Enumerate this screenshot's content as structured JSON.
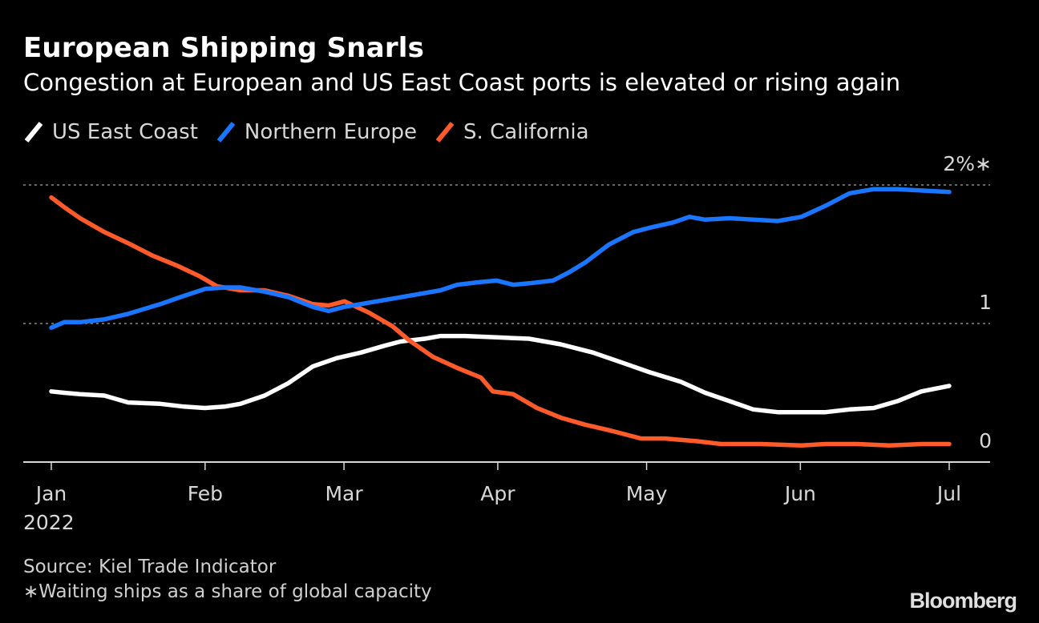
{
  "header": {
    "title": "European Shipping Snarls",
    "subtitle": "Congestion at European and US East Coast ports is elevated or rising again"
  },
  "legend": [
    {
      "label": "US East Coast",
      "color": "#ffffff"
    },
    {
      "label": "Northern Europe",
      "color": "#1a75ff"
    },
    {
      "label": "S. California",
      "color": "#ff5a2a"
    }
  ],
  "footer": {
    "source": "Source: Kiel Trade Indicator",
    "note": "∗Waiting ships as a share of global capacity",
    "brand": "Bloomberg"
  },
  "chart_data": {
    "type": "line",
    "title": "European Shipping Snarls",
    "subtitle": "Congestion at European and US East Coast ports is elevated or rising again",
    "xlabel": "",
    "ylabel": "Waiting ships as a share of global capacity (%)",
    "x_unit": "days since 2022-01-01",
    "xlim": [
      0,
      181
    ],
    "ylim": [
      0,
      2
    ],
    "y_ticks": [
      {
        "value": 0,
        "label": "0"
      },
      {
        "value": 1,
        "label": "1"
      },
      {
        "value": 2,
        "label": "2%∗"
      }
    ],
    "x_ticks": [
      {
        "value": 0,
        "label": "Jan",
        "sublabel": "2022"
      },
      {
        "value": 31,
        "label": "Feb"
      },
      {
        "value": 59,
        "label": "Mar"
      },
      {
        "value": 90,
        "label": "Apr"
      },
      {
        "value": 120,
        "label": "May"
      },
      {
        "value": 151,
        "label": "Jun"
      },
      {
        "value": 181,
        "label": "Jul"
      }
    ],
    "grid": "dotted horizontal at 1 and 2",
    "legend_position": "top-left",
    "series": [
      {
        "name": "US East Coast",
        "color": "#ffffff",
        "x": [
          0,
          2.6,
          5.8,
          10.7,
          15.5,
          21.97,
          26.8,
          31,
          34.9,
          38.1,
          42.98,
          47.8,
          52.7,
          57.5,
          62.4,
          67.2,
          70.4,
          75.3,
          78.5,
          83.4,
          89.8,
          96.3,
          102.7,
          109.2,
          115.7,
          120.5,
          126.9,
          131.8,
          136.7,
          141.5,
          146.4,
          151.2,
          156.1,
          160.9,
          165.8,
          170.6,
          175.4,
          181
        ],
        "values": [
          0.51,
          0.5,
          0.49,
          0.48,
          0.43,
          0.42,
          0.4,
          0.39,
          0.4,
          0.42,
          0.48,
          0.57,
          0.69,
          0.75,
          0.79,
          0.84,
          0.87,
          0.89,
          0.91,
          0.91,
          0.9,
          0.89,
          0.85,
          0.79,
          0.71,
          0.65,
          0.58,
          0.5,
          0.44,
          0.38,
          0.36,
          0.36,
          0.36,
          0.38,
          0.39,
          0.44,
          0.51,
          0.55
        ]
      },
      {
        "name": "Northern Europe",
        "color": "#1a75ff",
        "x": [
          0,
          2.6,
          5.8,
          10.7,
          15.5,
          21.97,
          26.8,
          31,
          34.9,
          38.1,
          42.98,
          47.8,
          52.7,
          55.9,
          59.1,
          63.98,
          68.8,
          73.7,
          78.5,
          81.8,
          86.6,
          89.8,
          93.1,
          96.3,
          101.1,
          104.4,
          107.6,
          112.4,
          117.3,
          120.5,
          125.4,
          128.6,
          131.8,
          136.7,
          141.5,
          146.4,
          151.2,
          156.1,
          160.9,
          165.8,
          170.6,
          175.4,
          181
        ],
        "values": [
          0.97,
          1.01,
          1.01,
          1.03,
          1.07,
          1.14,
          1.2,
          1.25,
          1.26,
          1.26,
          1.23,
          1.19,
          1.12,
          1.09,
          1.12,
          1.15,
          1.18,
          1.21,
          1.24,
          1.28,
          1.3,
          1.31,
          1.28,
          1.29,
          1.31,
          1.37,
          1.44,
          1.57,
          1.66,
          1.69,
          1.73,
          1.77,
          1.75,
          1.76,
          1.75,
          1.74,
          1.77,
          1.85,
          1.94,
          1.97,
          1.97,
          1.96,
          1.95
        ]
      },
      {
        "name": "S. California",
        "color": "#ff5a2a",
        "x": [
          0,
          2.6,
          5.8,
          10.7,
          15.5,
          20.4,
          25.2,
          30.0,
          33.3,
          38.1,
          42.98,
          47.8,
          52.7,
          55.9,
          59.1,
          63.98,
          68.8,
          72.1,
          76.9,
          81.8,
          86.6,
          89.0,
          93.1,
          97.9,
          102.7,
          107.6,
          112.4,
          118.9,
          123.7,
          130.2,
          135.0,
          143.1,
          151.2,
          156.1,
          162.5,
          169.0,
          175.4,
          181
        ],
        "values": [
          1.91,
          1.84,
          1.76,
          1.66,
          1.58,
          1.49,
          1.42,
          1.34,
          1.27,
          1.24,
          1.24,
          1.2,
          1.14,
          1.13,
          1.16,
          1.08,
          0.98,
          0.88,
          0.76,
          0.68,
          0.61,
          0.51,
          0.49,
          0.39,
          0.32,
          0.27,
          0.23,
          0.17,
          0.17,
          0.15,
          0.13,
          0.13,
          0.12,
          0.13,
          0.13,
          0.12,
          0.13,
          0.13
        ]
      }
    ]
  }
}
